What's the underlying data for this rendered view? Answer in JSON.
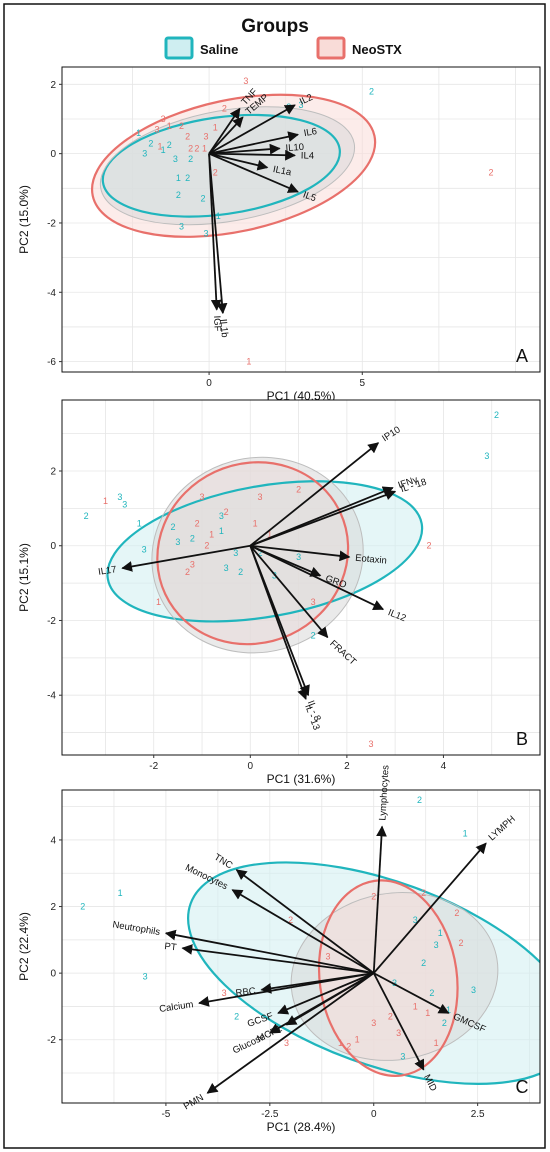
{
  "legend": {
    "title": "Groups",
    "entries": [
      {
        "name": "Saline",
        "fill": "#cfeef1",
        "stroke": "#20b5bd"
      },
      {
        "name": "NeoSTX",
        "fill": "#f9dcd8",
        "stroke": "#e8706b"
      }
    ]
  },
  "colors": {
    "saline": "#20b5bd",
    "neostx": "#e8706b",
    "grid": "#e6e6e6",
    "arrow": "#111111"
  },
  "chart_data": [
    {
      "type": "scatter",
      "panel_label": "A",
      "xlabel": "PC1 (40.5%)",
      "ylabel": "PC2 (15.0%)",
      "xlim": [
        -4.8,
        10.8
      ],
      "ylim": [
        -6.3,
        2.5
      ],
      "x_ticks": [
        0,
        5
      ],
      "y_ticks": [
        2,
        0,
        -2,
        -4,
        -6
      ],
      "ellipses": [
        {
          "group": "NeoSTX",
          "cx": 0.8,
          "cy": -0.35,
          "rx": 4.7,
          "ry": 1.9,
          "angle": 12
        },
        {
          "group": "Saline",
          "cx": 0.4,
          "cy": -0.35,
          "rx": 3.9,
          "ry": 1.4,
          "angle": 8
        },
        {
          "group": "grey",
          "cx": 0.6,
          "cy": -0.35,
          "rx": 4.2,
          "ry": 1.6,
          "angle": 10
        }
      ],
      "loadings": [
        {
          "name": "TNF",
          "x": 1.0,
          "y": 1.3
        },
        {
          "name": "TEMP",
          "x": 1.1,
          "y": 1.05
        },
        {
          "name": "IL2",
          "x": 2.8,
          "y": 1.4
        },
        {
          "name": "IL6",
          "x": 2.9,
          "y": 0.55
        },
        {
          "name": "IL10",
          "x": 2.3,
          "y": 0.15
        },
        {
          "name": "IL4",
          "x": 2.8,
          "y": -0.05
        },
        {
          "name": "IL1a",
          "x": 1.9,
          "y": -0.4
        },
        {
          "name": "IL5",
          "x": 2.9,
          "y": -1.1
        },
        {
          "name": "IL1b",
          "x": 0.45,
          "y": -4.6
        },
        {
          "name": "IGF",
          "x": 0.25,
          "y": -4.5
        }
      ],
      "points": [
        {
          "x": -2.3,
          "y": 0.6,
          "label": "1",
          "group": "Saline"
        },
        {
          "x": -1.9,
          "y": 0.3,
          "label": "2",
          "group": "Saline"
        },
        {
          "x": -1.5,
          "y": 0.1,
          "label": "1",
          "group": "Saline"
        },
        {
          "x": -1.3,
          "y": 0.25,
          "label": "2",
          "group": "Saline"
        },
        {
          "x": -2.1,
          "y": 0.0,
          "label": "3",
          "group": "Saline"
        },
        {
          "x": -1.1,
          "y": -0.15,
          "label": "3",
          "group": "Saline"
        },
        {
          "x": -0.6,
          "y": -0.15,
          "label": "2",
          "group": "Saline"
        },
        {
          "x": -0.7,
          "y": -0.7,
          "label": "2",
          "group": "Saline"
        },
        {
          "x": -1.0,
          "y": -0.7,
          "label": "1",
          "group": "Saline"
        },
        {
          "x": -1.0,
          "y": -1.2,
          "label": "2",
          "group": "Saline"
        },
        {
          "x": -0.2,
          "y": -1.3,
          "label": "2",
          "group": "Saline"
        },
        {
          "x": -0.9,
          "y": -2.1,
          "label": "3",
          "group": "Saline"
        },
        {
          "x": -0.1,
          "y": -2.3,
          "label": "3",
          "group": "Saline"
        },
        {
          "x": 0.3,
          "y": -1.8,
          "label": "1",
          "group": "Saline"
        },
        {
          "x": 3.0,
          "y": 1.4,
          "label": "3",
          "group": "Saline"
        },
        {
          "x": 5.3,
          "y": 1.8,
          "label": "2",
          "group": "Saline"
        },
        {
          "x": 2.6,
          "y": 1.35,
          "label": "2",
          "group": "Saline"
        },
        {
          "x": -1.5,
          "y": 1.0,
          "label": "3",
          "group": "NeoSTX"
        },
        {
          "x": -1.3,
          "y": 0.8,
          "label": "1",
          "group": "NeoSTX"
        },
        {
          "x": -0.9,
          "y": 0.8,
          "label": "2",
          "group": "NeoSTX"
        },
        {
          "x": -0.7,
          "y": 0.5,
          "label": "2",
          "group": "NeoSTX"
        },
        {
          "x": -0.6,
          "y": 0.15,
          "label": "2",
          "group": "NeoSTX"
        },
        {
          "x": -0.4,
          "y": 0.15,
          "label": "2",
          "group": "NeoSTX"
        },
        {
          "x": -0.15,
          "y": 0.15,
          "label": "1",
          "group": "NeoSTX"
        },
        {
          "x": -1.7,
          "y": 0.7,
          "label": "3",
          "group": "NeoSTX"
        },
        {
          "x": -1.6,
          "y": 0.2,
          "label": "1",
          "group": "NeoSTX"
        },
        {
          "x": -0.1,
          "y": 0.5,
          "label": "3",
          "group": "NeoSTX"
        },
        {
          "x": 0.2,
          "y": 0.75,
          "label": "1",
          "group": "NeoSTX"
        },
        {
          "x": 1.2,
          "y": 2.1,
          "label": "3",
          "group": "NeoSTX"
        },
        {
          "x": 0.5,
          "y": 1.3,
          "label": "2",
          "group": "NeoSTX"
        },
        {
          "x": 9.2,
          "y": -0.55,
          "label": "2",
          "group": "NeoSTX"
        },
        {
          "x": 1.3,
          "y": -6.0,
          "label": "1",
          "group": "NeoSTX"
        },
        {
          "x": 0.2,
          "y": -0.55,
          "label": "2",
          "group": "NeoSTX"
        }
      ]
    },
    {
      "type": "scatter",
      "panel_label": "B",
      "xlabel": "PC1 (31.6%)",
      "ylabel": "PC2 (15.1%)",
      "xlim": [
        -3.9,
        6.0
      ],
      "ylim": [
        -5.6,
        3.9
      ],
      "x_ticks": [
        -2,
        0,
        2,
        4
      ],
      "y_ticks": [
        2,
        0,
        -2,
        -4
      ],
      "ellipses": [
        {
          "group": "Saline",
          "cx": 0.3,
          "cy": -0.15,
          "rx": 3.3,
          "ry": 1.75,
          "angle": 10
        },
        {
          "group": "NeoSTX",
          "cx": 0.05,
          "cy": -0.2,
          "rx": 2.0,
          "ry": 2.4,
          "angle": 25
        },
        {
          "group": "grey",
          "cx": 0.15,
          "cy": -0.25,
          "rx": 2.2,
          "ry": 2.6,
          "angle": 15
        }
      ],
      "loadings": [
        {
          "name": "IP10",
          "x": 2.65,
          "y": 2.75
        },
        {
          "name": "IFNγ",
          "x": 2.95,
          "y": 1.55
        },
        {
          "name": "IL - 18",
          "x": 3.0,
          "y": 1.45
        },
        {
          "name": "Eotaxin",
          "x": 2.05,
          "y": -0.3
        },
        {
          "name": "GRO",
          "x": 1.45,
          "y": -0.8
        },
        {
          "name": "IL12",
          "x": 2.75,
          "y": -1.7
        },
        {
          "name": "FRACT",
          "x": 1.6,
          "y": -2.45
        },
        {
          "name": "IL - 8",
          "x": 1.2,
          "y": -4.0
        },
        {
          "name": "IL - 13",
          "x": 1.15,
          "y": -4.1
        },
        {
          "name": "IL17",
          "x": -2.65,
          "y": -0.6
        }
      ],
      "points": [
        {
          "x": -3.4,
          "y": 0.8,
          "label": "2",
          "group": "Saline"
        },
        {
          "x": -2.7,
          "y": 1.3,
          "label": "3",
          "group": "Saline"
        },
        {
          "x": -2.6,
          "y": 1.1,
          "label": "3",
          "group": "Saline"
        },
        {
          "x": -2.3,
          "y": 0.6,
          "label": "1",
          "group": "Saline"
        },
        {
          "x": -2.2,
          "y": -0.1,
          "label": "3",
          "group": "Saline"
        },
        {
          "x": -1.6,
          "y": 0.5,
          "label": "2",
          "group": "Saline"
        },
        {
          "x": -1.5,
          "y": 0.1,
          "label": "3",
          "group": "Saline"
        },
        {
          "x": -1.2,
          "y": 0.2,
          "label": "2",
          "group": "Saline"
        },
        {
          "x": -0.6,
          "y": 0.8,
          "label": "3",
          "group": "Saline"
        },
        {
          "x": -0.6,
          "y": 0.4,
          "label": "1",
          "group": "Saline"
        },
        {
          "x": -0.3,
          "y": -0.2,
          "label": "3",
          "group": "Saline"
        },
        {
          "x": -0.5,
          "y": -0.6,
          "label": "3",
          "group": "Saline"
        },
        {
          "x": -0.2,
          "y": -0.7,
          "label": "2",
          "group": "Saline"
        },
        {
          "x": 0.2,
          "y": -0.2,
          "label": "2",
          "group": "Saline"
        },
        {
          "x": 0.5,
          "y": -0.8,
          "label": "3",
          "group": "Saline"
        },
        {
          "x": 1.0,
          "y": -0.3,
          "label": "3",
          "group": "Saline"
        },
        {
          "x": 1.3,
          "y": -2.4,
          "label": "2",
          "group": "Saline"
        },
        {
          "x": 5.1,
          "y": 3.5,
          "label": "2",
          "group": "Saline"
        },
        {
          "x": 4.9,
          "y": 2.4,
          "label": "3",
          "group": "Saline"
        },
        {
          "x": -1.0,
          "y": 1.3,
          "label": "3",
          "group": "NeoSTX"
        },
        {
          "x": -0.5,
          "y": 0.9,
          "label": "2",
          "group": "NeoSTX"
        },
        {
          "x": 0.2,
          "y": 1.3,
          "label": "3",
          "group": "NeoSTX"
        },
        {
          "x": 1.0,
          "y": 1.5,
          "label": "2",
          "group": "NeoSTX"
        },
        {
          "x": -1.1,
          "y": 0.6,
          "label": "2",
          "group": "NeoSTX"
        },
        {
          "x": -0.8,
          "y": 0.3,
          "label": "1",
          "group": "NeoSTX"
        },
        {
          "x": -0.9,
          "y": 0.0,
          "label": "2",
          "group": "NeoSTX"
        },
        {
          "x": -1.3,
          "y": -0.7,
          "label": "2",
          "group": "NeoSTX"
        },
        {
          "x": -1.2,
          "y": -0.5,
          "label": "3",
          "group": "NeoSTX"
        },
        {
          "x": -3.0,
          "y": 1.2,
          "label": "1",
          "group": "NeoSTX"
        },
        {
          "x": -1.9,
          "y": -1.5,
          "label": "1",
          "group": "NeoSTX"
        },
        {
          "x": 0.1,
          "y": 0.6,
          "label": "1",
          "group": "NeoSTX"
        },
        {
          "x": 0.4,
          "y": 0.3,
          "label": "1",
          "group": "NeoSTX"
        },
        {
          "x": 1.3,
          "y": -1.5,
          "label": "3",
          "group": "NeoSTX"
        },
        {
          "x": 3.7,
          "y": 0.0,
          "label": "2",
          "group": "NeoSTX"
        },
        {
          "x": 2.5,
          "y": -5.3,
          "label": "3",
          "group": "NeoSTX"
        }
      ]
    },
    {
      "type": "scatter",
      "panel_label": "C",
      "xlabel": "PC1 (28.4%)",
      "ylabel": "PC2 (22.4%)",
      "xlim": [
        -7.5,
        4.0
      ],
      "ylim": [
        -3.9,
        5.5
      ],
      "x_ticks": [
        -5,
        -2.5,
        0,
        2.5
      ],
      "y_ticks": [
        4,
        2,
        0,
        -2
      ],
      "ellipses": [
        {
          "group": "Saline",
          "cx": 0.2,
          "cy": 0.0,
          "rx": 4.9,
          "ry": 2.75,
          "angle": -20
        },
        {
          "group": "grey",
          "cx": 0.5,
          "cy": -0.1,
          "rx": 2.5,
          "ry": 2.5,
          "angle": 10
        },
        {
          "group": "NeoSTX",
          "cx": 0.35,
          "cy": -0.15,
          "rx": 1.65,
          "ry": 2.95,
          "angle": 8
        }
      ],
      "loadings": [
        {
          "name": "Lymphocytes",
          "x": 0.2,
          "y": 4.4
        },
        {
          "name": "LYMPH",
          "x": 2.7,
          "y": 3.9
        },
        {
          "name": "TNC",
          "x": -3.3,
          "y": 3.1
        },
        {
          "name": "Monocytes",
          "x": -3.4,
          "y": 2.5
        },
        {
          "name": "Neutrophils",
          "x": -5.0,
          "y": 1.2
        },
        {
          "name": "PT",
          "x": -4.6,
          "y": 0.75
        },
        {
          "name": "RBC",
          "x": -2.7,
          "y": -0.5
        },
        {
          "name": "Calcium",
          "x": -4.2,
          "y": -0.9
        },
        {
          "name": "GCSF",
          "x": -2.3,
          "y": -1.2
        },
        {
          "name": "MCP1",
          "x": -2.1,
          "y": -1.55
        },
        {
          "name": "Glucose",
          "x": -2.5,
          "y": -1.8
        },
        {
          "name": "PMN",
          "x": -4.0,
          "y": -3.6
        },
        {
          "name": "GMCSF",
          "x": 1.8,
          "y": -1.2
        },
        {
          "name": "MID",
          "x": 1.2,
          "y": -2.9
        }
      ],
      "points": [
        {
          "x": -7.0,
          "y": 2.0,
          "label": "2",
          "group": "Saline"
        },
        {
          "x": -6.1,
          "y": 2.4,
          "label": "1",
          "group": "Saline"
        },
        {
          "x": -5.5,
          "y": -0.1,
          "label": "3",
          "group": "Saline"
        },
        {
          "x": 1.1,
          "y": 5.2,
          "label": "2",
          "group": "Saline"
        },
        {
          "x": 2.2,
          "y": 4.2,
          "label": "1",
          "group": "Saline"
        },
        {
          "x": 1.0,
          "y": 1.6,
          "label": "3",
          "group": "Saline"
        },
        {
          "x": 1.6,
          "y": 1.2,
          "label": "1",
          "group": "Saline"
        },
        {
          "x": 1.5,
          "y": 0.85,
          "label": "3",
          "group": "Saline"
        },
        {
          "x": 1.2,
          "y": 0.3,
          "label": "2",
          "group": "Saline"
        },
        {
          "x": 0.5,
          "y": -0.3,
          "label": "3",
          "group": "Saline"
        },
        {
          "x": 1.4,
          "y": -0.6,
          "label": "2",
          "group": "Saline"
        },
        {
          "x": 2.4,
          "y": -0.5,
          "label": "3",
          "group": "Saline"
        },
        {
          "x": 1.8,
          "y": -1.1,
          "label": "1",
          "group": "Saline"
        },
        {
          "x": -3.3,
          "y": -1.3,
          "label": "2",
          "group": "Saline"
        },
        {
          "x": 0.7,
          "y": -2.5,
          "label": "3",
          "group": "Saline"
        },
        {
          "x": 1.7,
          "y": -1.5,
          "label": "2",
          "group": "Saline"
        },
        {
          "x": 1.2,
          "y": 2.4,
          "label": "2",
          "group": "NeoSTX"
        },
        {
          "x": 2.0,
          "y": 1.8,
          "label": "2",
          "group": "NeoSTX"
        },
        {
          "x": 2.1,
          "y": 0.9,
          "label": "2",
          "group": "NeoSTX"
        },
        {
          "x": -2.0,
          "y": 1.6,
          "label": "2",
          "group": "NeoSTX"
        },
        {
          "x": -1.1,
          "y": 0.5,
          "label": "3",
          "group": "NeoSTX"
        },
        {
          "x": -3.6,
          "y": -0.6,
          "label": "3",
          "group": "NeoSTX"
        },
        {
          "x": 0.4,
          "y": -1.3,
          "label": "2",
          "group": "NeoSTX"
        },
        {
          "x": 1.0,
          "y": -1.0,
          "label": "1",
          "group": "NeoSTX"
        },
        {
          "x": 0.0,
          "y": -1.5,
          "label": "3",
          "group": "NeoSTX"
        },
        {
          "x": 1.3,
          "y": -1.2,
          "label": "1",
          "group": "NeoSTX"
        },
        {
          "x": -0.4,
          "y": -2.0,
          "label": "1",
          "group": "NeoSTX"
        },
        {
          "x": -0.8,
          "y": -2.1,
          "label": "1",
          "group": "NeoSTX"
        },
        {
          "x": -0.6,
          "y": -2.2,
          "label": "2",
          "group": "NeoSTX"
        },
        {
          "x": -2.1,
          "y": -2.1,
          "label": "3",
          "group": "NeoSTX"
        },
        {
          "x": 0.6,
          "y": -1.8,
          "label": "3",
          "group": "NeoSTX"
        },
        {
          "x": 1.5,
          "y": -2.1,
          "label": "1",
          "group": "NeoSTX"
        },
        {
          "x": 0.0,
          "y": 2.3,
          "label": "2",
          "group": "NeoSTX"
        }
      ]
    }
  ]
}
